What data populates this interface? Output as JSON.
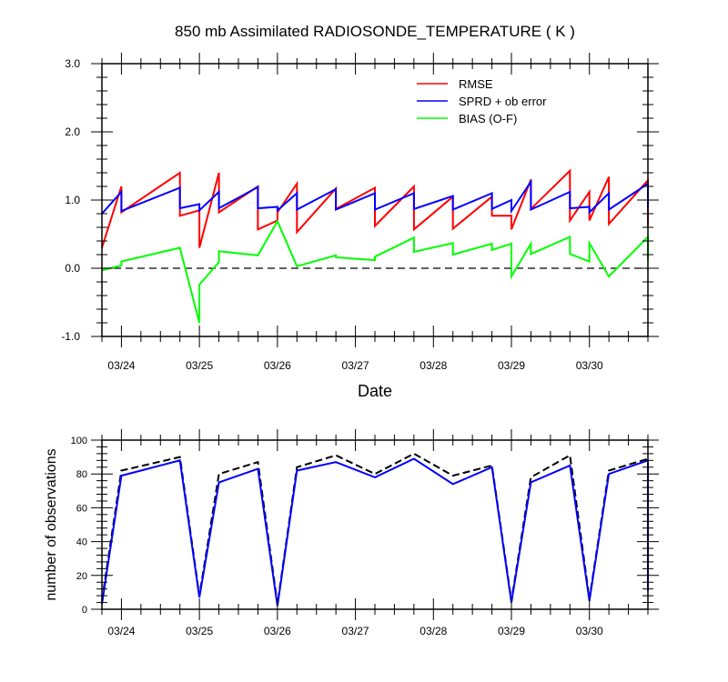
{
  "chart_data": [
    {
      "type": "line",
      "title": "850 mb Assimilated RADIOSONDE_TEMPERATURE ( K )",
      "xlabel": "Date",
      "ylabel": "",
      "x_tick_labels": [
        "03/24",
        "03/25",
        "03/26",
        "03/27",
        "03/28",
        "03/29",
        "03/30"
      ],
      "x_tick_days": [
        1,
        2,
        3,
        4,
        5,
        6,
        7
      ],
      "xlim_days": [
        0.75,
        7.75
      ],
      "ylim": [
        -1.0,
        3.0
      ],
      "y_ticks": [
        -1.0,
        0.0,
        1.0,
        2.0,
        3.0
      ],
      "y_tick_labels": [
        "-1.0",
        "0.0",
        "1.0",
        "2.0",
        "3.0"
      ],
      "legend_position": "top-right",
      "zero_line": "dashed",
      "series": [
        {
          "name": "RMSE",
          "color": "#ff0000",
          "points": [
            [
              0.75,
              0.3
            ],
            [
              1.0,
              1.2
            ],
            [
              1.0,
              0.82
            ],
            [
              1.75,
              1.4
            ],
            [
              1.75,
              0.77
            ],
            [
              2.0,
              0.85
            ],
            [
              2.0,
              0.3
            ],
            [
              2.25,
              1.4
            ],
            [
              2.25,
              0.82
            ],
            [
              2.75,
              1.2
            ],
            [
              2.75,
              0.57
            ],
            [
              3.0,
              0.7
            ],
            [
              3.0,
              0.82
            ],
            [
              3.25,
              1.24
            ],
            [
              3.25,
              0.53
            ],
            [
              3.75,
              1.17
            ],
            [
              3.75,
              0.87
            ],
            [
              4.25,
              1.18
            ],
            [
              4.25,
              0.62
            ],
            [
              4.75,
              1.2
            ],
            [
              4.75,
              0.57
            ],
            [
              5.25,
              1.05
            ],
            [
              5.25,
              0.58
            ],
            [
              5.75,
              1.05
            ],
            [
              5.75,
              0.77
            ],
            [
              6.0,
              0.77
            ],
            [
              6.0,
              0.57
            ],
            [
              6.25,
              1.3
            ],
            [
              6.25,
              0.87
            ],
            [
              6.75,
              1.43
            ],
            [
              6.75,
              0.7
            ],
            [
              7.0,
              1.12
            ],
            [
              7.0,
              0.7
            ],
            [
              7.25,
              1.34
            ],
            [
              7.25,
              0.65
            ],
            [
              7.75,
              1.29
            ],
            [
              7.75,
              0.62
            ],
            [
              8.0,
              1.0
            ]
          ]
        },
        {
          "name": "SPRD + ob error",
          "color": "#0000ff",
          "points": [
            [
              0.75,
              0.8
            ],
            [
              1.0,
              1.12
            ],
            [
              1.0,
              0.84
            ],
            [
              1.75,
              1.18
            ],
            [
              1.75,
              0.88
            ],
            [
              2.0,
              0.94
            ],
            [
              2.0,
              0.85
            ],
            [
              2.25,
              1.12
            ],
            [
              2.25,
              0.88
            ],
            [
              2.75,
              1.19
            ],
            [
              2.75,
              0.88
            ],
            [
              3.0,
              0.9
            ],
            [
              3.0,
              0.85
            ],
            [
              3.25,
              1.1
            ],
            [
              3.25,
              0.86
            ],
            [
              3.75,
              1.16
            ],
            [
              3.75,
              0.86
            ],
            [
              4.25,
              1.1
            ],
            [
              4.25,
              0.86
            ],
            [
              4.75,
              1.1
            ],
            [
              4.75,
              0.87
            ],
            [
              5.25,
              1.06
            ],
            [
              5.25,
              0.86
            ],
            [
              5.75,
              1.1
            ],
            [
              5.75,
              0.87
            ],
            [
              6.0,
              1.0
            ],
            [
              6.0,
              0.84
            ],
            [
              6.25,
              1.27
            ],
            [
              6.25,
              0.86
            ],
            [
              6.75,
              1.12
            ],
            [
              6.75,
              0.88
            ],
            [
              7.0,
              0.9
            ],
            [
              7.0,
              0.82
            ],
            [
              7.25,
              1.1
            ],
            [
              7.25,
              0.86
            ],
            [
              7.75,
              1.24
            ],
            [
              7.75,
              0.88
            ],
            [
              8.0,
              1.07
            ]
          ]
        },
        {
          "name": "BIAS (O-F)",
          "color": "#00ff00",
          "points": [
            [
              0.75,
              -0.03
            ],
            [
              1.0,
              0.04
            ],
            [
              1.0,
              0.1
            ],
            [
              1.75,
              0.3
            ],
            [
              2.0,
              -0.8
            ],
            [
              2.0,
              -0.24
            ],
            [
              2.25,
              0.09
            ],
            [
              2.25,
              0.25
            ],
            [
              2.75,
              0.19
            ],
            [
              3.0,
              0.69
            ],
            [
              3.25,
              0.03
            ],
            [
              3.75,
              0.19
            ],
            [
              3.75,
              0.16
            ],
            [
              4.25,
              0.12
            ],
            [
              4.25,
              0.17
            ],
            [
              4.75,
              0.45
            ],
            [
              4.75,
              0.24
            ],
            [
              5.25,
              0.37
            ],
            [
              5.25,
              0.2
            ],
            [
              5.75,
              0.36
            ],
            [
              5.75,
              0.27
            ],
            [
              6.0,
              0.36
            ],
            [
              6.0,
              -0.12
            ],
            [
              6.25,
              0.36
            ],
            [
              6.25,
              0.21
            ],
            [
              6.75,
              0.46
            ],
            [
              6.75,
              0.21
            ],
            [
              7.0,
              0.1
            ],
            [
              7.0,
              0.37
            ],
            [
              7.25,
              -0.12
            ],
            [
              7.75,
              0.46
            ],
            [
              7.75,
              0.12
            ],
            [
              8.0,
              0.3
            ]
          ]
        }
      ]
    },
    {
      "type": "line",
      "title": "",
      "xlabel": "",
      "ylabel": "number of observations",
      "x_tick_labels": [
        "03/24",
        "03/25",
        "03/26",
        "03/27",
        "03/28",
        "03/29",
        "03/30"
      ],
      "x_tick_days": [
        1,
        2,
        3,
        4,
        5,
        6,
        7
      ],
      "xlim_days": [
        0.75,
        7.75
      ],
      "ylim": [
        0,
        100
      ],
      "y_ticks": [
        0,
        20,
        40,
        60,
        80,
        100
      ],
      "y_tick_labels": [
        "0",
        "20",
        "40",
        "60",
        "80",
        "100"
      ],
      "series": [
        {
          "style": "dashed",
          "color": "#000000",
          "points": [
            [
              0.75,
              5
            ],
            [
              1.0,
              82
            ],
            [
              1.75,
              90
            ],
            [
              2.0,
              8
            ],
            [
              2.25,
              80
            ],
            [
              2.75,
              87
            ],
            [
              3.0,
              3
            ],
            [
              3.25,
              84
            ],
            [
              3.75,
              91
            ],
            [
              4.25,
              80
            ],
            [
              4.75,
              92
            ],
            [
              5.25,
              79
            ],
            [
              5.75,
              85
            ],
            [
              6.0,
              5
            ],
            [
              6.25,
              78
            ],
            [
              6.75,
              91
            ],
            [
              7.0,
              6
            ],
            [
              7.25,
              82
            ],
            [
              7.75,
              89
            ],
            [
              8.0,
              12
            ]
          ]
        },
        {
          "style": "solid",
          "color": "#0000ff",
          "points": [
            [
              0.75,
              3
            ],
            [
              1.0,
              79
            ],
            [
              1.75,
              88
            ],
            [
              2.0,
              7
            ],
            [
              2.25,
              75
            ],
            [
              2.75,
              83
            ],
            [
              3.0,
              2
            ],
            [
              3.25,
              82
            ],
            [
              3.75,
              87
            ],
            [
              4.25,
              78
            ],
            [
              4.75,
              89
            ],
            [
              5.25,
              74
            ],
            [
              5.75,
              84
            ],
            [
              6.0,
              4
            ],
            [
              6.25,
              75
            ],
            [
              6.75,
              85
            ],
            [
              7.0,
              5
            ],
            [
              7.25,
              80
            ],
            [
              7.75,
              88
            ],
            [
              8.0,
              11
            ]
          ]
        }
      ]
    }
  ]
}
